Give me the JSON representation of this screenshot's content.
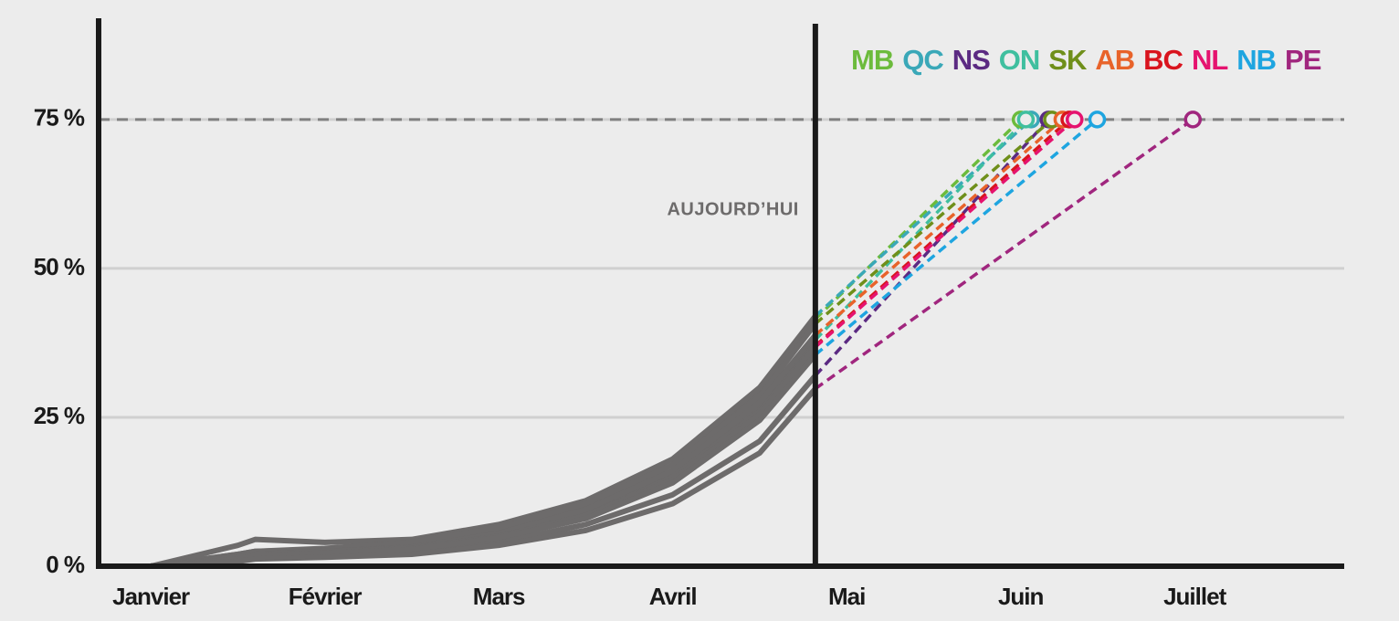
{
  "chart_data": {
    "type": "line",
    "annotation": "AUJOURD’HUI",
    "today_x": 3.82,
    "target": 75,
    "history_color": "#6d6b6b",
    "target_color": "#808080",
    "grid_color": "#d0d0d0",
    "xlim": [
      -0.3,
      6.86
    ],
    "ylim": [
      0,
      92
    ],
    "xticks": [
      {
        "value": 0,
        "label": "Janvier"
      },
      {
        "value": 1,
        "label": "Février"
      },
      {
        "value": 2,
        "label": "Mars"
      },
      {
        "value": 3,
        "label": "Avril"
      },
      {
        "value": 4,
        "label": "Mai"
      },
      {
        "value": 5,
        "label": "Juin"
      },
      {
        "value": 6,
        "label": "Juillet"
      }
    ],
    "yticks": [
      {
        "value": 0,
        "label": "0 %"
      },
      {
        "value": 25,
        "label": "25 %"
      },
      {
        "value": 50,
        "label": "50 %"
      },
      {
        "value": 75,
        "label": "75 %"
      }
    ],
    "grid": true,
    "x": [
      0,
      0.5,
      0.6,
      1,
      1.5,
      2,
      2.5,
      3,
      3.5,
      3.82
    ],
    "series": [
      {
        "name": "MB",
        "color": "#6cbb3c",
        "values": [
          0,
          2,
          2.5,
          2.8,
          3.5,
          6,
          10,
          17,
          29,
          41.5
        ],
        "target_x": 5.0
      },
      {
        "name": "QC",
        "color": "#3aa8b8",
        "values": [
          0,
          3.5,
          4.5,
          4,
          4.5,
          7,
          11,
          18,
          30,
          42
        ],
        "target_x": 5.06
      },
      {
        "name": "NS",
        "color": "#5b2a82",
        "values": [
          0,
          1,
          1.5,
          1.8,
          2.5,
          4,
          7,
          12,
          21,
          32
        ],
        "target_x": 5.16
      },
      {
        "name": "ON",
        "color": "#3fbf9f",
        "values": [
          0,
          1.5,
          2,
          2.5,
          3.2,
          5.5,
          9,
          15.5,
          27,
          38
        ],
        "target_x": 5.03
      },
      {
        "name": "SK",
        "color": "#6f8f1a",
        "values": [
          0,
          2,
          2.5,
          3,
          4,
          6.5,
          10.5,
          17,
          28.5,
          40.7
        ],
        "target_x": 5.18
      },
      {
        "name": "AB",
        "color": "#e8632a",
        "values": [
          0,
          1.5,
          2,
          2.5,
          3.2,
          5.5,
          9.5,
          16,
          27.5,
          38.8
        ],
        "target_x": 5.24
      },
      {
        "name": "BC",
        "color": "#d9141e",
        "values": [
          0,
          1.2,
          1.8,
          2.2,
          3,
          5,
          8.5,
          15,
          26,
          37
        ],
        "target_x": 5.28
      },
      {
        "name": "NL",
        "color": "#e5136f",
        "values": [
          0,
          1.5,
          2,
          2.5,
          3,
          5,
          8.5,
          14.5,
          25.5,
          36.8
        ],
        "target_x": 5.31
      },
      {
        "name": "NB",
        "color": "#1ea5e0",
        "values": [
          0,
          1.2,
          1.8,
          2.2,
          2.8,
          4.8,
          8,
          14,
          24.5,
          35.5
        ],
        "target_x": 5.44
      },
      {
        "name": "PE",
        "color": "#a0267e",
        "values": [
          0,
          0.8,
          1.2,
          1.5,
          2,
          3.5,
          6,
          10.5,
          19,
          29.8
        ],
        "target_x": 5.99
      }
    ]
  }
}
